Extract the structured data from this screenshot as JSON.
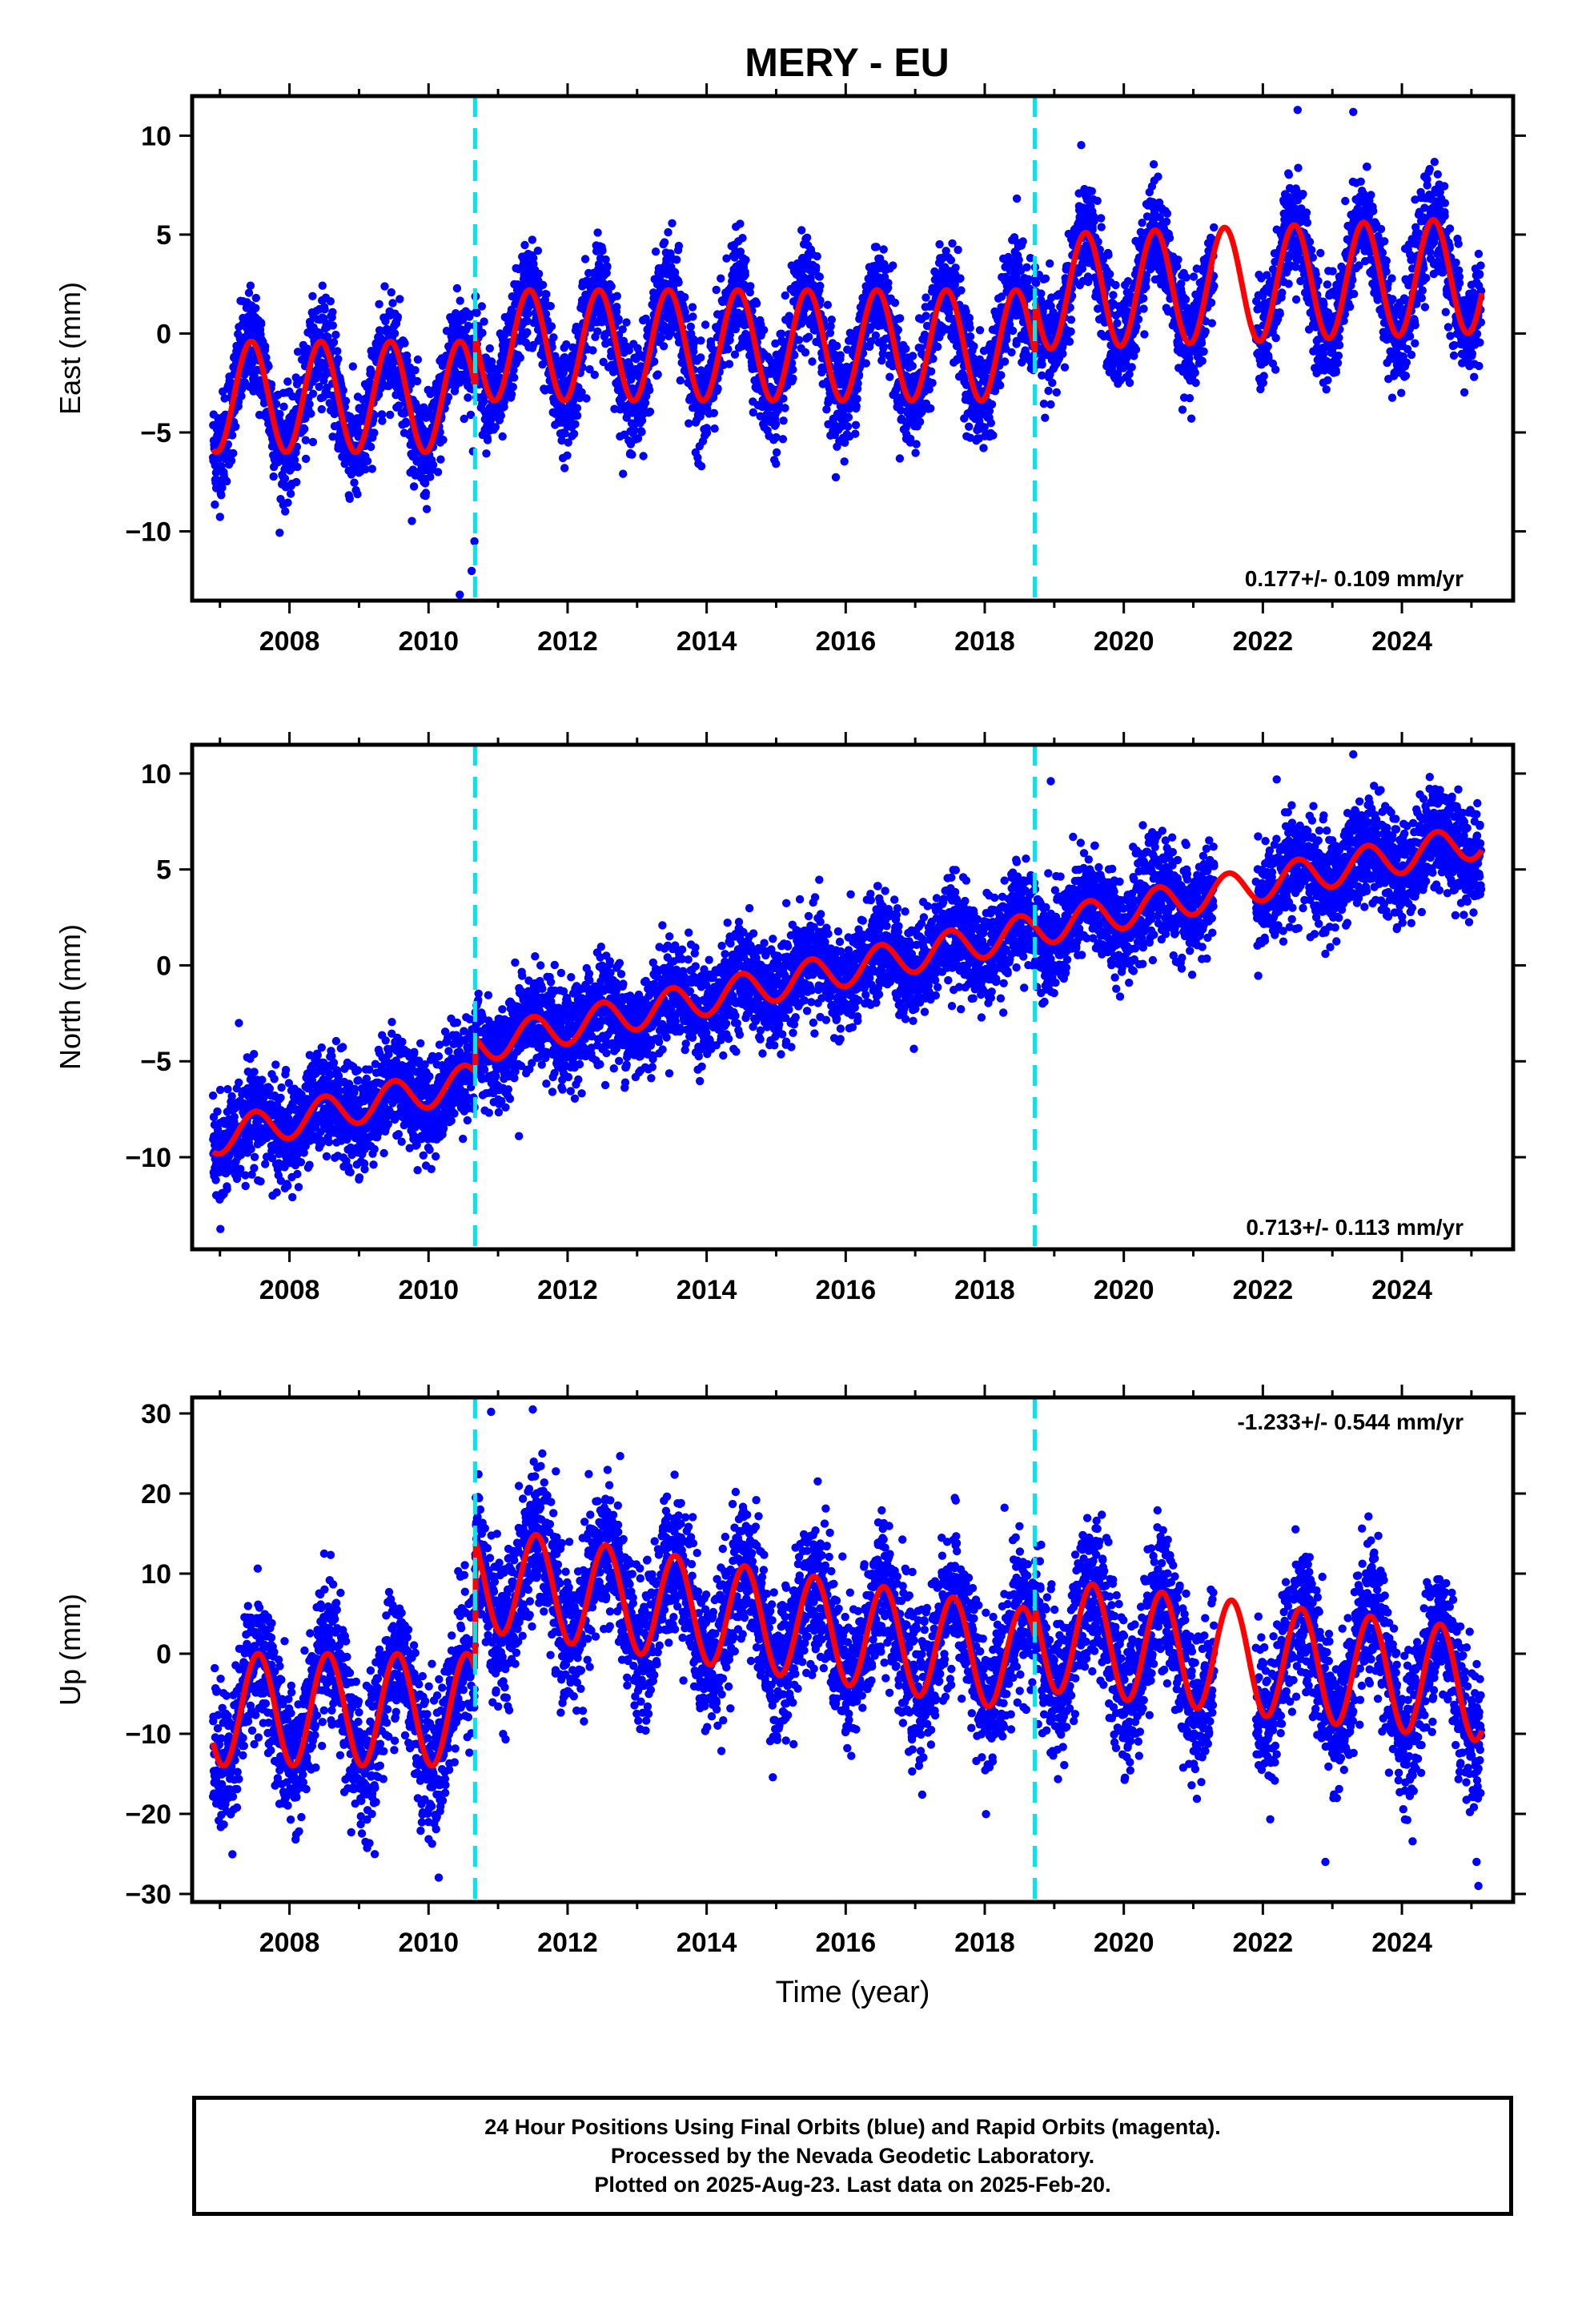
{
  "title": "MERY - EU",
  "colors": {
    "data": "#0000ff",
    "model": "#ff0000",
    "offset": "#00e5ee",
    "frame": "#000000"
  },
  "chart_data": [
    {
      "type": "scatter",
      "panel": "east",
      "ylabel": "East (mm)",
      "xlabel": "",
      "xlim": [
        2006.6,
        2025.6
      ],
      "ylim": [
        -13.5,
        12
      ],
      "yticks": [
        -10,
        -5,
        0,
        5,
        10
      ],
      "xticks": [
        2008,
        2010,
        2012,
        2014,
        2016,
        2018,
        2020,
        2022,
        2024
      ],
      "offsets": [
        2010.67,
        2018.72
      ],
      "velocity_text": "0.177+/- 0.109 mm/yr",
      "velocity_position": "bottom-right",
      "model": {
        "segments": [
          {
            "t0": 2006.9,
            "t1": 2010.67,
            "off": -3.2,
            "amp": 2.8,
            "vel": 0.0,
            "tref": 2006.9
          },
          {
            "t0": 2010.67,
            "t1": 2018.72,
            "off": -0.6,
            "amp": 2.8,
            "vel": 0.0,
            "tref": 2010.67
          },
          {
            "t0": 2018.72,
            "t1": 2025.15,
            "off": 2.1,
            "amp": 2.9,
            "vel": 0.13,
            "tref": 2018.72
          }
        ],
        "peak_phase": 0.45
      },
      "scatter": {
        "noise": 1.3,
        "outliers": [
          [
            2010.45,
            -13.2
          ],
          [
            2010.62,
            -12.0
          ],
          [
            2010.66,
            -10.5
          ],
          [
            2023.3,
            11.2
          ],
          [
            2022.5,
            11.3
          ]
        ]
      },
      "gaps": [
        [
          2021.3,
          2021.9
        ]
      ]
    },
    {
      "type": "scatter",
      "panel": "north",
      "ylabel": "North (mm)",
      "xlabel": "",
      "xlim": [
        2006.6,
        2025.6
      ],
      "ylim": [
        -14.8,
        11.5
      ],
      "yticks": [
        -10,
        -5,
        0,
        5,
        10
      ],
      "xticks": [
        2008,
        2010,
        2012,
        2014,
        2016,
        2018,
        2020,
        2022,
        2024
      ],
      "offsets": [
        2010.67,
        2018.72
      ],
      "velocity_text": "0.713+/- 0.113 mm/yr",
      "velocity_position": "bottom-right",
      "model": {
        "segments": [
          {
            "t0": 2006.9,
            "t1": 2010.67,
            "off": -9.0,
            "amp": 0.9,
            "vel": 0.8,
            "tref": 2006.9
          },
          {
            "t0": 2010.67,
            "t1": 2018.72,
            "off": -4.2,
            "amp": 0.9,
            "vel": 0.75,
            "tref": 2010.67
          },
          {
            "t0": 2018.72,
            "t1": 2025.15,
            "off": 1.9,
            "amp": 0.9,
            "vel": 0.72,
            "tref": 2018.72
          }
        ],
        "peak_phase": 0.5
      },
      "scatter": {
        "noise": 1.3,
        "outliers": [
          [
            2018.95,
            9.6
          ],
          [
            2023.3,
            11.0
          ],
          [
            2019.6,
            0.9
          ],
          [
            2022.9,
            0.6
          ],
          [
            2011.3,
            -8.9
          ]
        ]
      },
      "gaps": [
        [
          2021.3,
          2021.9
        ]
      ]
    },
    {
      "type": "scatter",
      "panel": "up",
      "ylabel": "Up (mm)",
      "xlabel": "Time (year)",
      "xlim": [
        2006.6,
        2025.6
      ],
      "ylim": [
        -31,
        32
      ],
      "yticks": [
        -30,
        -20,
        -10,
        0,
        10,
        20,
        30
      ],
      "xticks": [
        2008,
        2010,
        2012,
        2014,
        2016,
        2018,
        2020,
        2022,
        2024
      ],
      "offsets": [
        2010.67,
        2018.72
      ],
      "velocity_text": "-1.233+/- 0.544 mm/yr",
      "velocity_position": "top-right",
      "model": {
        "segments": [
          {
            "t0": 2006.9,
            "t1": 2010.67,
            "off": -7.0,
            "amp": 7.0,
            "vel": 0.0,
            "tref": 2006.9
          },
          {
            "t0": 2010.67,
            "t1": 2018.72,
            "off": 9.5,
            "amp": 6.5,
            "vel": -1.3,
            "tref": 2010.67
          },
          {
            "t0": 2018.72,
            "t1": 2025.15,
            "off": 2.5,
            "amp": 7.0,
            "vel": -1.0,
            "tref": 2018.72
          }
        ],
        "peak_phase": 0.55
      },
      "scatter": {
        "noise": 4.5,
        "outliers": [
          [
            2011.5,
            30.5
          ],
          [
            2010.9,
            30.2
          ],
          [
            2022.9,
            -26.0
          ],
          [
            2025.1,
            -29.0
          ]
        ]
      },
      "gaps": [
        [
          2021.3,
          2021.9
        ]
      ]
    }
  ],
  "footer": {
    "line1": "24 Hour Positions Using Final Orbits (blue) and Rapid Orbits (magenta).",
    "line2": "Processed by the Nevada Geodetic Laboratory.",
    "line3": "Plotted on 2025-Aug-23. Last data on 2025-Feb-20."
  }
}
